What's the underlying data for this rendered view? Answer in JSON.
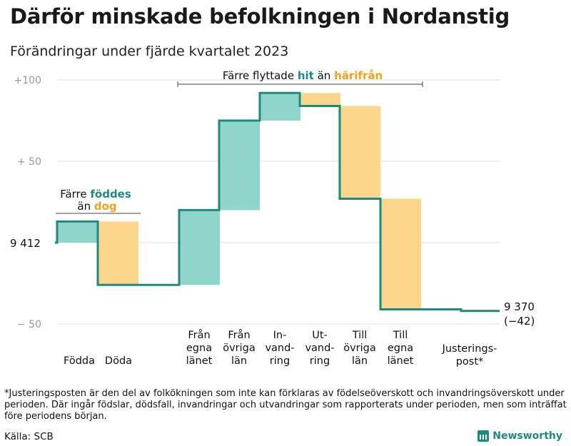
{
  "header": {
    "title": "Därför minskade befolkningen i Nordanstig",
    "subtitle": "Förändringar under fjärde kvartalet 2023"
  },
  "chart_data": {
    "type": "waterfall",
    "baseline": 9412,
    "ylim": [
      -55,
      103
    ],
    "yticks": [
      {
        "value": 100,
        "label": "+100"
      },
      {
        "value": 50,
        "label": "+  50"
      },
      {
        "value": 0,
        "label": ""
      },
      {
        "value": -50,
        "label": "−  50"
      }
    ],
    "start_label": "9  412",
    "steps": [
      {
        "name": "births",
        "label": [
          "Födda"
        ],
        "change": 13,
        "kind": "in"
      },
      {
        "name": "deaths",
        "label": [
          "Döda"
        ],
        "change": -39,
        "kind": "out"
      },
      {
        "name": "in-from-municipality",
        "label": [
          "Från",
          "egna",
          "länet"
        ],
        "change": 46,
        "kind": "in"
      },
      {
        "name": "in-from-other-counties",
        "label": [
          "Från",
          "övriga",
          "län"
        ],
        "change": 55,
        "kind": "in"
      },
      {
        "name": "immigration",
        "label": [
          "In-",
          "vand-",
          "ring"
        ],
        "change": 17,
        "kind": "in"
      },
      {
        "name": "emigration",
        "label": [
          "Ut-",
          "vand-",
          "ring"
        ],
        "change": -8,
        "kind": "out"
      },
      {
        "name": "out-to-other-counties",
        "label": [
          "Till",
          "övriga",
          "län"
        ],
        "change": -57,
        "kind": "out"
      },
      {
        "name": "out-to-own-county",
        "label": [
          "Till",
          "egna",
          "länet"
        ],
        "change": -68,
        "kind": "out"
      },
      {
        "name": "adjustment",
        "label": [
          "Justerings-",
          "post*"
        ],
        "change": -1,
        "kind": "adjust"
      }
    ],
    "end_label": "9 370",
    "end_change_label": "(−42)",
    "annotations": {
      "births_deaths": {
        "line1_prefix": "Färre ",
        "line1_highlight": "föddes",
        "line2_prefix": "än ",
        "line2_highlight": "dog"
      },
      "migration": {
        "prefix": "Färre flyttade ",
        "in_word": "hit",
        "middle": " än ",
        "out_word": "härifrån"
      }
    },
    "colors": {
      "in_fill": "#8fd5cb",
      "out_fill": "#fbd68c",
      "line": "#1d8a80",
      "in_text": "#1d8a80",
      "out_text": "#f2a11a",
      "grid": "#dcdcdc"
    }
  },
  "footer": {
    "footnote": "*Justeringsposten är den del av folkökningen som inte kan förklaras av födelseöverskott och invandringsöverskott under perioden. Där ingår födslar, dödsfall, invandringar och utvandringar som rapporterats under perioden, men som inträffat före periodens början.",
    "source": "Källa: SCB",
    "brand": "Newsworthy"
  }
}
